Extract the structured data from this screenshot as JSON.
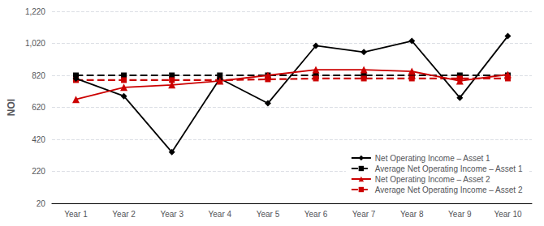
{
  "chart_data": {
    "type": "line",
    "categories": [
      "Year 1",
      "Year 2",
      "Year 3",
      "Year 4",
      "Year 5",
      "Year 6",
      "Year 7",
      "Year 8",
      "Year 9",
      "Year 10"
    ],
    "series": [
      {
        "name": "Net Operating Income – Asset 1",
        "color": "#000000",
        "marker": "diamond",
        "line_style": "solid",
        "values": [
          800,
          690,
          340,
          800,
          645,
          1005,
          965,
          1035,
          680,
          1065
        ]
      },
      {
        "name": "Average Net Operating Income – Asset 1",
        "color": "#000000",
        "marker": "square",
        "line_style": "dashed",
        "values": [
          820,
          820,
          820,
          820,
          820,
          820,
          820,
          820,
          820,
          820
        ]
      },
      {
        "name": "Net Operating Income – Asset 2",
        "color": "#cc0000",
        "marker": "triangle",
        "line_style": "solid",
        "values": [
          670,
          745,
          760,
          785,
          820,
          855,
          855,
          845,
          785,
          825
        ]
      },
      {
        "name": "Average Net Operating Income – Asset 2",
        "color": "#cc0000",
        "marker": "square",
        "line_style": "dashed",
        "values": [
          790,
          790,
          790,
          790,
          795,
          800,
          800,
          800,
          800,
          800
        ]
      }
    ],
    "ylabel": "NOI",
    "ylim": [
      20,
      1220
    ],
    "yticks": [
      20,
      220,
      420,
      620,
      820,
      {
        "value": 1020,
        "label": "1,020"
      },
      {
        "value": 1220,
        "label": "1,220"
      }
    ],
    "grid": true,
    "legend": "lower right"
  }
}
